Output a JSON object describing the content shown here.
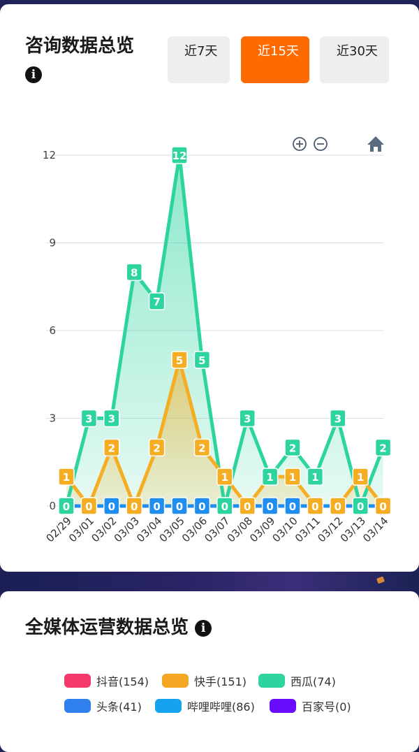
{
  "consult": {
    "title": "咨询数据总览",
    "info_icon": "info-icon",
    "tabs": [
      {
        "label": "近7天",
        "active": false
      },
      {
        "label": "近15天",
        "active": true
      },
      {
        "label": "近30天",
        "active": false
      }
    ],
    "toolbar_icons": [
      "zoom-in-icon",
      "zoom-out-icon",
      "home-icon"
    ]
  },
  "media": {
    "title": "全媒体运营数据总览",
    "info_icon": "info-icon",
    "legend": [
      {
        "label": "抖音(154)",
        "color": "#f5396b"
      },
      {
        "label": "快手(151)",
        "color": "#f5a623"
      },
      {
        "label": "西瓜(74)",
        "color": "#2dd4a0"
      },
      {
        "label": "头条(41)",
        "color": "#2f80ed"
      },
      {
        "label": "哔哩哔哩(86)",
        "color": "#17a2f0"
      },
      {
        "label": "百家号(0)",
        "color": "#6a0dff"
      }
    ]
  },
  "chart_data": {
    "type": "line",
    "categories": [
      "02/29",
      "03/01",
      "03/02",
      "03/03",
      "03/04",
      "03/05",
      "03/06",
      "03/07",
      "03/08",
      "03/09",
      "03/10",
      "03/11",
      "03/12",
      "03/13",
      "03/14"
    ],
    "yticks": [
      0,
      3,
      6,
      9,
      12
    ],
    "ylim": [
      0,
      12
    ],
    "grid": true,
    "series": [
      {
        "color": "#2dd4a0",
        "area": true,
        "values": [
          0,
          3,
          3,
          8,
          7,
          12,
          5,
          0,
          3,
          1,
          2,
          1,
          3,
          0,
          2
        ]
      },
      {
        "color": "#f5ad23",
        "area": true,
        "values": [
          1,
          0,
          2,
          0,
          2,
          5,
          2,
          1,
          0,
          1,
          1,
          0,
          0,
          1,
          0
        ]
      },
      {
        "color": "#1f8ef0",
        "area": false,
        "values": [
          0,
          0,
          0,
          0,
          0,
          0,
          0,
          0,
          0,
          0,
          0,
          0,
          0,
          0,
          0
        ]
      }
    ]
  }
}
